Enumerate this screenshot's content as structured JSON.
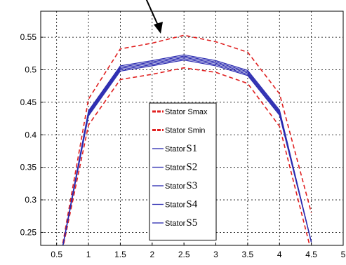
{
  "chart_data": {
    "type": "line",
    "title": "",
    "xlabel": "",
    "ylabel": "",
    "xlim": [
      0.25,
      5
    ],
    "ylim": [
      0.23,
      0.59
    ],
    "grid": true,
    "legend_placement": "center",
    "x_ticks": [
      "0.5",
      "1",
      "1.5",
      "2",
      "2.5",
      "3",
      "3.5",
      "4",
      "4.5",
      "5"
    ],
    "y_ticks": [
      "0.25",
      "0.3",
      "0.35",
      "0.4",
      "0.45",
      "0.5",
      "0.55"
    ],
    "x": [
      0.5,
      1,
      1.5,
      2,
      2.5,
      3,
      3.5,
      4,
      4.5
    ],
    "series": [
      {
        "name": "Stator Smax",
        "legend_prefix": "Stator",
        "legend_suffix": "Smax",
        "color": "#e02020",
        "dash": true,
        "values": [
          0.18,
          0.455,
          0.532,
          0.541,
          0.553,
          0.543,
          0.527,
          0.463,
          0.28
        ]
      },
      {
        "name": "Stator Smin",
        "legend_prefix": "Stator",
        "legend_suffix": "Smin",
        "color": "#e02020",
        "dash": true,
        "values": [
          0.18,
          0.415,
          0.485,
          0.493,
          0.503,
          0.496,
          0.479,
          0.413,
          0.22
        ]
      },
      {
        "name": "Stator S1",
        "legend_prefix": "Stator",
        "legend_suffix": "S1",
        "color": "#2a2ab0",
        "dash": false,
        "values": [
          0.18,
          0.437,
          0.506,
          0.514,
          0.523,
          0.514,
          0.499,
          0.438,
          0.235
        ]
      },
      {
        "name": "Stator S2",
        "legend_prefix": "Stator",
        "legend_suffix": "S2",
        "color": "#2a2ab0",
        "dash": false,
        "values": [
          0.18,
          0.435,
          0.504,
          0.512,
          0.521,
          0.512,
          0.497,
          0.436,
          0.235
        ]
      },
      {
        "name": "Stator S3",
        "legend_prefix": "Stator",
        "legend_suffix": "S3",
        "color": "#2a2ab0",
        "dash": false,
        "values": [
          0.18,
          0.433,
          0.502,
          0.51,
          0.519,
          0.51,
          0.495,
          0.434,
          0.235
        ]
      },
      {
        "name": "Stator S4",
        "legend_prefix": "Stator",
        "legend_suffix": "S4",
        "color": "#2a2ab0",
        "dash": false,
        "values": [
          0.18,
          0.431,
          0.5,
          0.508,
          0.517,
          0.508,
          0.493,
          0.432,
          0.235
        ]
      },
      {
        "name": "Stator S5",
        "legend_prefix": "Stator",
        "legend_suffix": "S5",
        "color": "#2a2ab0",
        "dash": false,
        "values": [
          0.18,
          0.429,
          0.498,
          0.506,
          0.515,
          0.506,
          0.491,
          0.43,
          0.235
        ]
      }
    ]
  }
}
